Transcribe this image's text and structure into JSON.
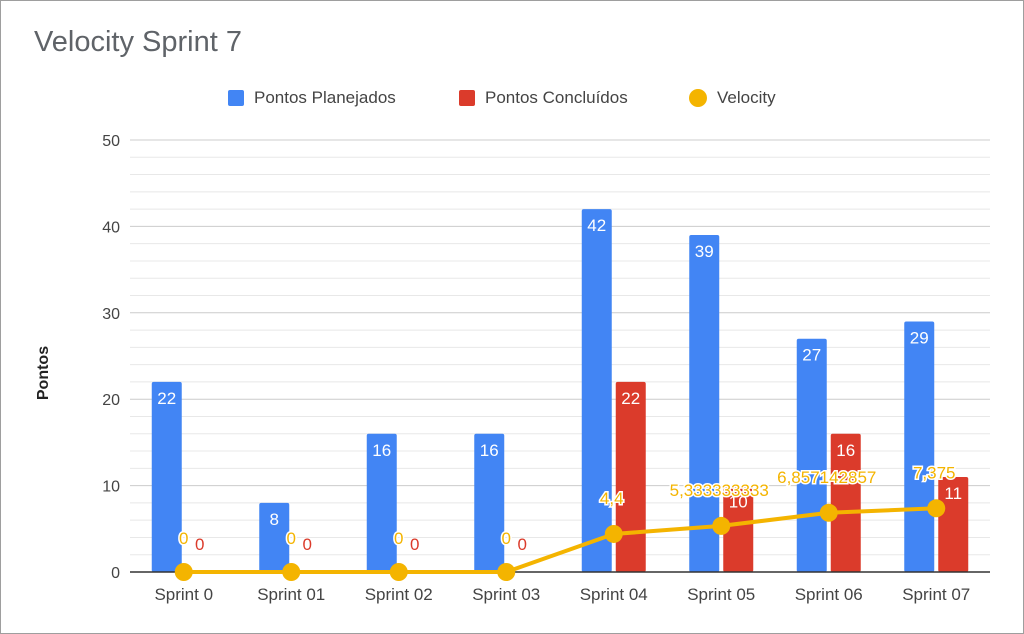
{
  "chart_data": {
    "type": "bar",
    "title": "Velocity Sprint 7",
    "xlabel": "",
    "ylabel": "Pontos",
    "ylim": [
      0,
      50
    ],
    "yticks": [
      "0",
      "10",
      "20",
      "30",
      "40",
      "50"
    ],
    "grid": true,
    "legend_position": "top",
    "categories": [
      "Sprint 0",
      "Sprint 01",
      "Sprint 02",
      "Sprint 03",
      "Sprint 04",
      "Sprint 05",
      "Sprint 06",
      "Sprint 07"
    ],
    "series": [
      {
        "name": "Pontos Planejados",
        "type": "bar",
        "color": "#4285f4",
        "values": [
          22,
          8,
          16,
          16,
          42,
          39,
          27,
          29
        ],
        "labels": [
          "22",
          "8",
          "16",
          "16",
          "42",
          "39",
          "27",
          "29"
        ]
      },
      {
        "name": "Pontos Concluídos",
        "type": "bar",
        "color": "#db3b2b",
        "values": [
          0,
          0,
          0,
          0,
          22,
          10,
          16,
          11
        ],
        "labels": [
          "0",
          "0",
          "0",
          "0",
          "22",
          "10",
          "16",
          "11"
        ]
      },
      {
        "name": "Velocity",
        "type": "line",
        "color": "#f4b400",
        "values": [
          0,
          0,
          0,
          0,
          4.4,
          5.333333333,
          6.857142857,
          7.375
        ],
        "labels": [
          "0",
          "0",
          "0",
          "0",
          "4,4",
          "5,333333333",
          "6,857142857",
          "7,375"
        ]
      }
    ]
  }
}
